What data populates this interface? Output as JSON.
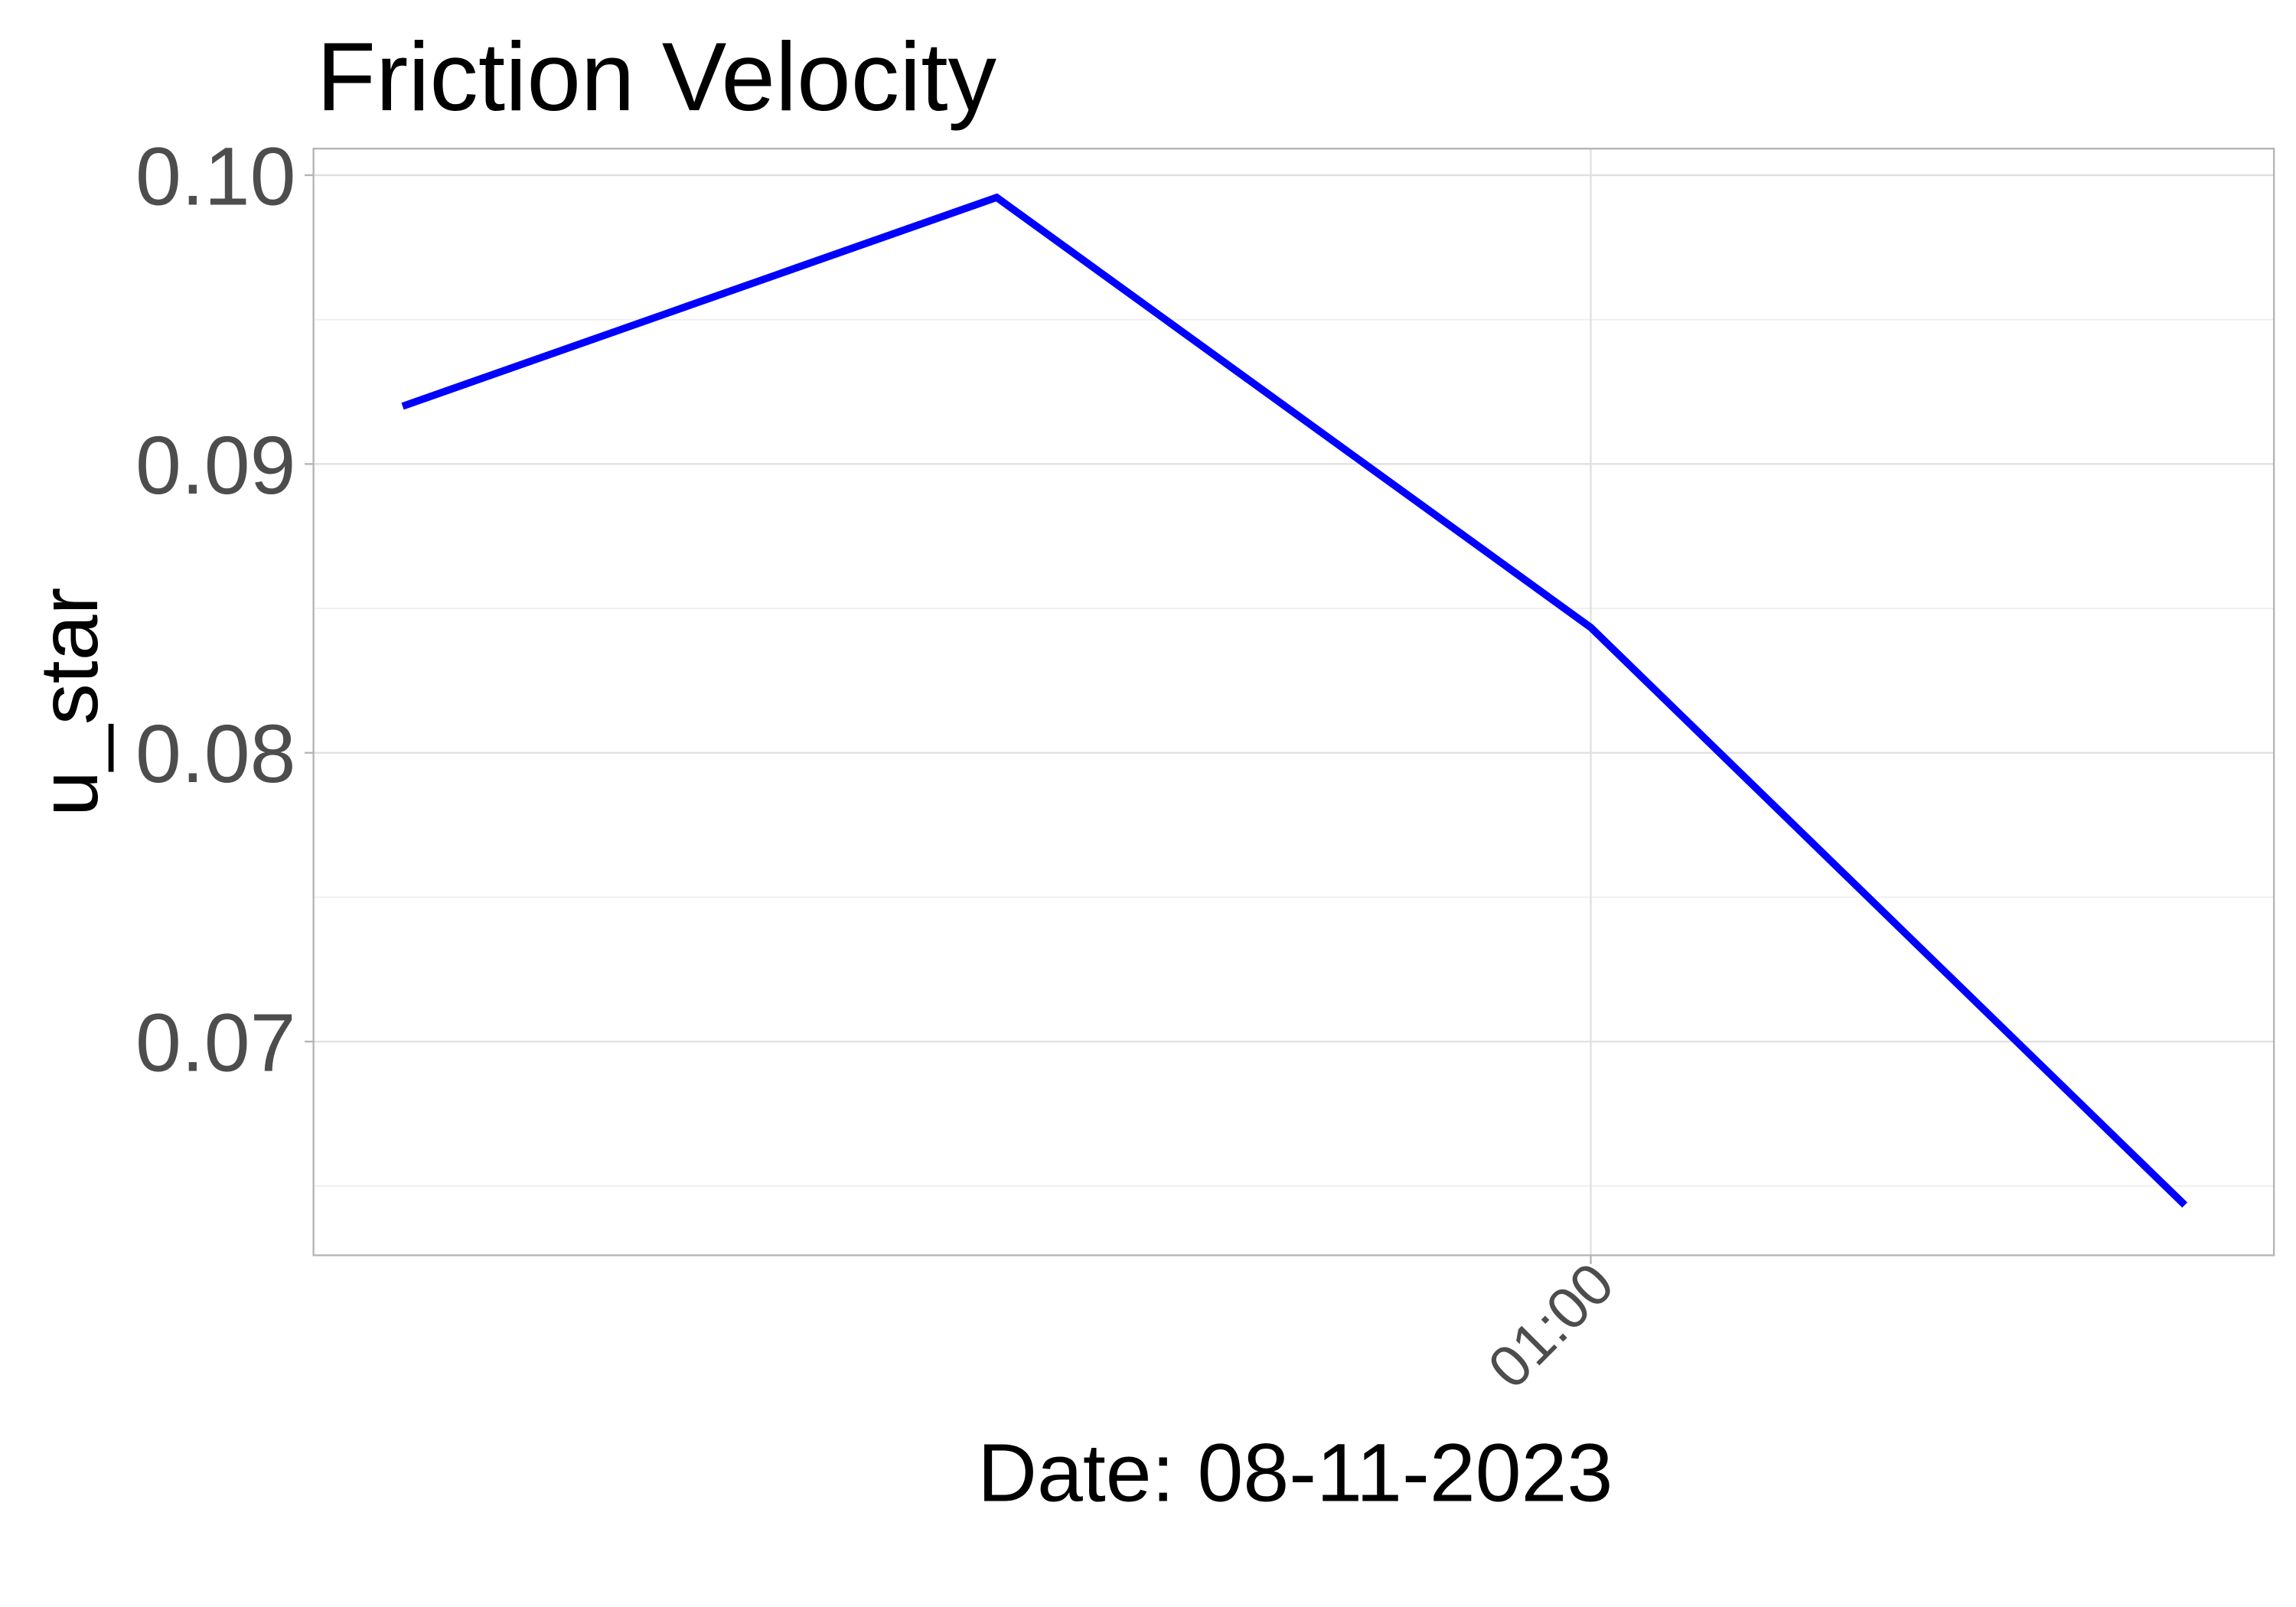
{
  "chart_data": {
    "type": "line",
    "title": "Friction Velocity",
    "x_label": "Date: 08-11-2023",
    "y_label": "u_star",
    "x": [
      0,
      30,
      60,
      90
    ],
    "series": [
      {
        "name": "u_star",
        "color": "#0000ff",
        "values": [
          0.092,
          0.09923,
          0.08434,
          0.06434
        ]
      }
    ],
    "xlim": [
      -4.5,
      94.5
    ],
    "xticks": [
      {
        "value": 60,
        "label": "01:00"
      }
    ],
    "ylim": [
      0.0626,
      0.10092
    ],
    "yticks": [
      0.07,
      0.08,
      0.09,
      {
        "value": 0.1,
        "label": "0.10"
      }
    ],
    "minor_yticks": [
      0.065,
      0.075,
      0.085,
      0.095
    ],
    "grid": true,
    "legend": false
  }
}
